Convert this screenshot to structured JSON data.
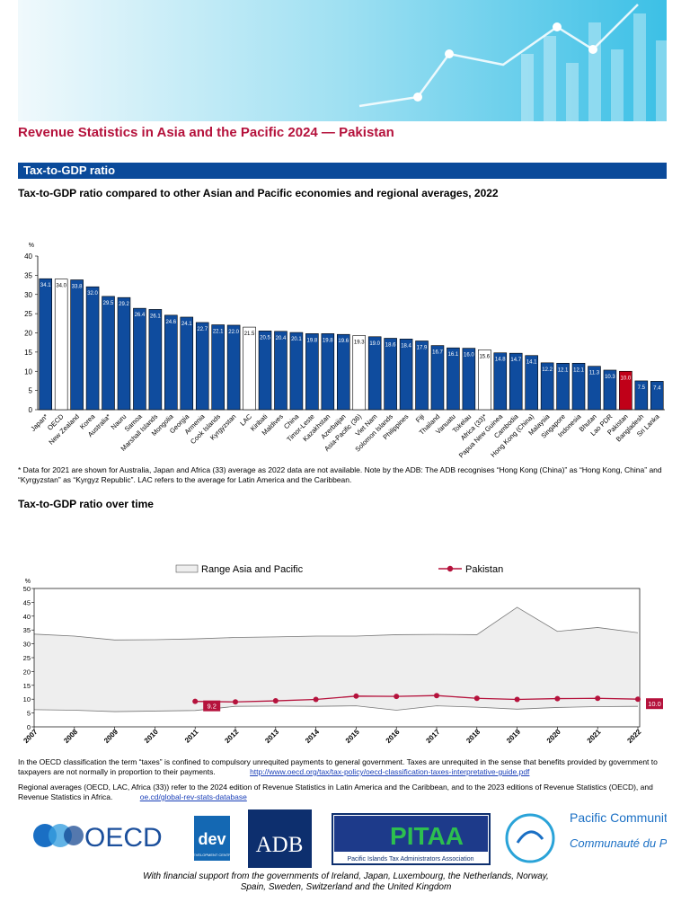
{
  "header": {
    "title": "Revenue Statistics in Asia and the Pacific 2024 — Pakistan",
    "section": "Tax-to-GDP ratio"
  },
  "chart_data": [
    {
      "type": "bar",
      "title": "Tax-to-GDP ratio compared to other Asian and Pacific economies and regional averages, 2022",
      "y_unit": "%",
      "categories": [
        "Japan*",
        "OECD",
        "New Zealand",
        "Korea",
        "Australia*",
        "Nauru",
        "Samoa",
        "Marshall Islands",
        "Mongolia",
        "Georgia",
        "Armenia",
        "Cook Islands",
        "Kyrgyzstan",
        "LAC",
        "Kiribati",
        "Maldives",
        "China",
        "Timor-Leste",
        "Kazakhstan",
        "Azerbaijan",
        "Asia-Pacific (36)",
        "Viet Nam",
        "Solomon Islands",
        "Philippines",
        "Fiji",
        "Thailand",
        "Vanuatu",
        "Tokelau",
        "Africa (33)*",
        "Papua New Guinea",
        "Cambodia",
        "Hong Kong (China)",
        "Malaysia",
        "Singapore",
        "Indonesia",
        "Bhutan",
        "Lao PDR",
        "Pakistan",
        "Bangladesh",
        "Sri Lanka"
      ],
      "values": [
        34.1,
        34.0,
        33.8,
        32.0,
        29.5,
        29.2,
        26.4,
        26.1,
        24.6,
        24.1,
        22.7,
        22.1,
        22.0,
        21.5,
        20.5,
        20.4,
        20.1,
        19.8,
        19.8,
        19.6,
        19.3,
        19.0,
        18.6,
        18.4,
        17.9,
        16.7,
        16.1,
        16.0,
        15.6,
        14.8,
        14.7,
        14.1,
        12.2,
        12.1,
        12.1,
        11.3,
        10.3,
        10.0,
        7.5,
        7.4
      ],
      "value_labels": [
        "34.1",
        "34.0",
        "33.8",
        "32.0",
        "29.5",
        "29.2",
        "26.4",
        "26.1",
        "24.6",
        "24.1",
        "22.7",
        "22.1",
        "22.0",
        "21.5",
        "20.5",
        "20.4",
        "20.1",
        "19.8",
        "19.8",
        "19.6",
        "19.3",
        "19.0",
        "18.6",
        "18.4",
        "17.9",
        "16.7",
        "16.1",
        "16.0",
        "15.6",
        "14.8",
        "14.7",
        "14.1",
        "12.2",
        "12.1",
        "12.1",
        "11.3",
        "10.3",
        "10.0",
        "7.5",
        "7.4"
      ],
      "colors": [
        "#0f4c9e",
        "#ffffff",
        "#0f4c9e",
        "#0f4c9e",
        "#0f4c9e",
        "#0f4c9e",
        "#0f4c9e",
        "#0f4c9e",
        "#0f4c9e",
        "#0f4c9e",
        "#0f4c9e",
        "#0f4c9e",
        "#0f4c9e",
        "#ffffff",
        "#0f4c9e",
        "#0f4c9e",
        "#0f4c9e",
        "#0f4c9e",
        "#0f4c9e",
        "#0f4c9e",
        "#ffffff",
        "#0f4c9e",
        "#0f4c9e",
        "#0f4c9e",
        "#0f4c9e",
        "#0f4c9e",
        "#0f4c9e",
        "#0f4c9e",
        "#ffffff",
        "#0f4c9e",
        "#0f4c9e",
        "#0f4c9e",
        "#0f4c9e",
        "#0f4c9e",
        "#0f4c9e",
        "#0f4c9e",
        "#0f4c9e",
        "#c00018",
        "#0f4c9e",
        "#0f4c9e"
      ],
      "ylim": [
        0,
        40
      ],
      "yticks": [
        0,
        5,
        10,
        15,
        20,
        25,
        30,
        35,
        40
      ],
      "footnote": "* Data for 2021 are shown for Australia, Japan and Africa (33) average as 2022 data are not available. Note by the ADB: The ADB recognises “Hong Kong (China)” as “Hong Kong, China” and “Kyrgyzstan” as “Kyrgyz Republic”. LAC refers to the average for Latin America and the Caribbean."
    },
    {
      "type": "line",
      "title": "Tax-to-GDP ratio over time",
      "y_unit": "%",
      "legend": "top",
      "x": [
        2007,
        2008,
        2009,
        2010,
        2011,
        2012,
        2013,
        2014,
        2015,
        2016,
        2017,
        2018,
        2019,
        2020,
        2021,
        2022
      ],
      "series": [
        {
          "name": "Range Asia and Pacific",
          "color": "#eeeeee",
          "upper": [
            33.5,
            32.8,
            31.4,
            31.5,
            31.8,
            32.3,
            32.5,
            32.8,
            32.8,
            33.3,
            33.4,
            33.3,
            43.2,
            34.5,
            35.9,
            34.0
          ],
          "lower": [
            6.2,
            6.0,
            5.5,
            5.7,
            5.9,
            7.4,
            7.5,
            7.4,
            7.6,
            6.0,
            7.6,
            7.1,
            6.4,
            7.0,
            7.3,
            7.4
          ]
        },
        {
          "name": "Pakistan",
          "color": "#b5123c",
          "values": [
            null,
            null,
            null,
            null,
            9.2,
            9.0,
            9.4,
            9.9,
            11.1,
            11.0,
            11.3,
            10.3,
            9.9,
            10.2,
            10.3,
            10.0
          ],
          "value_labels": [
            null,
            null,
            null,
            null,
            "9.2",
            null,
            null,
            null,
            null,
            null,
            null,
            null,
            null,
            null,
            null,
            "10.0"
          ]
        }
      ],
      "xlim": [
        2007,
        2022
      ],
      "xticks": [
        2007,
        2008,
        2009,
        2010,
        2011,
        2012,
        2013,
        2014,
        2015,
        2016,
        2017,
        2018,
        2019,
        2020,
        2021,
        2022
      ],
      "ylim": [
        0,
        50
      ],
      "yticks": [
        0,
        5,
        10,
        15,
        20,
        25,
        30,
        35,
        40,
        45,
        50
      ]
    }
  ],
  "notes": {
    "taxes": "In the OECD classification the term “taxes” is confined to compulsory unrequited payments to general government. Taxes are unrequited in the sense that benefits provided by government to taxpayers are not normally in proportion to their payments.",
    "taxes_link": "http://www.oecd.org/tax/tax-policy/oecd-classification-taxes-interpretative-guide.pdf",
    "regional": "Regional averages (OECD, LAC, Africa (33)) refer to the 2024 edition of Revenue Statistics in Latin America and the Caribbean, and to the 2023 editions of Revenue Statistics (OECD), and Revenue Statistics in Africa.",
    "regional_link": "oe.cd/global-rev-stats-database"
  },
  "logos": {
    "oecd": "OECD",
    "dev": "dev",
    "dev_sub": "DEVELOPMENT CENTRE",
    "adb": "ADB",
    "pitaa": "PITAA",
    "pitaa_sub": "Pacific Islands Tax Administrators Association",
    "spc_en": "Pacific Community",
    "spc_fr": "Communauté du Pacifique"
  },
  "support": "With financial support from the governments of Ireland, Japan, Luxembourg, the Netherlands, Norway, Spain, Sweden, Switzerland and the United Kingdom"
}
